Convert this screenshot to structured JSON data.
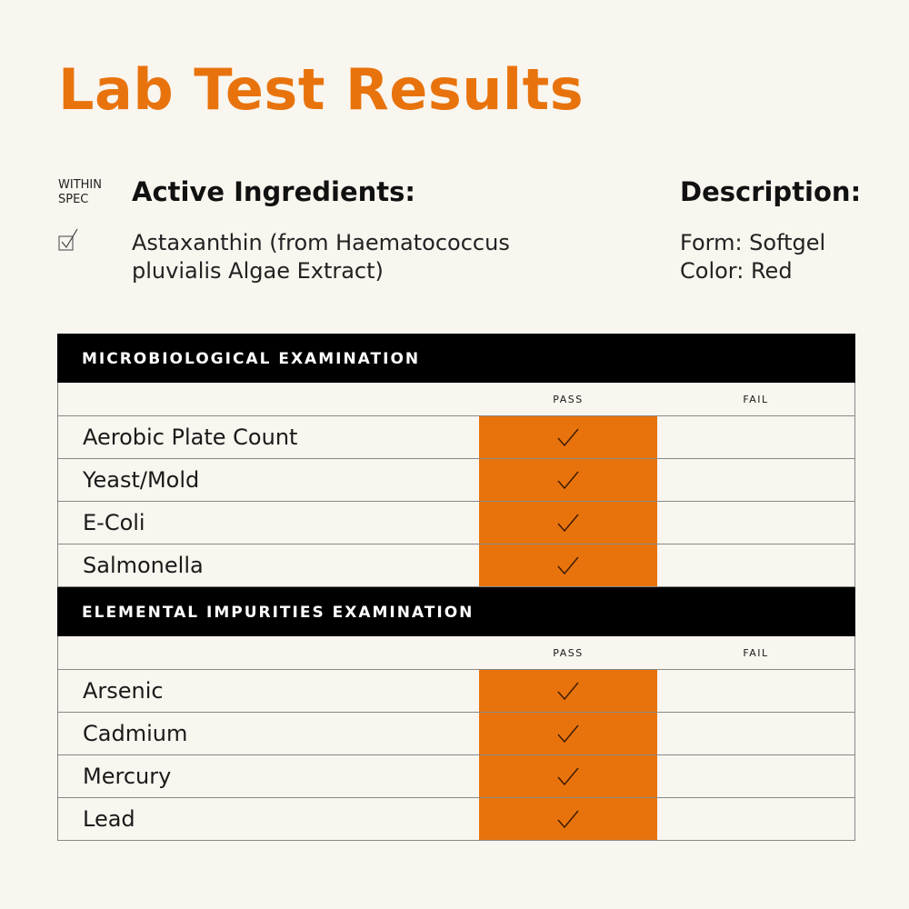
{
  "title": "Lab Test Results",
  "spec": {
    "line1": "WITHIN",
    "line2": "SPEC"
  },
  "active": {
    "heading": "Active Ingredients:",
    "line1": "Astaxanthin (from Haematococcus",
    "line2": "pluvialis Algae Extract)"
  },
  "description": {
    "heading": "Description:",
    "form": "Form: Softgel",
    "color": "Color: Red"
  },
  "colors": {
    "accent": "#e8730c",
    "background": "#f9f5ef"
  },
  "sections": [
    {
      "title": "MICROBIOLOGICAL EXAMINATION",
      "pass_label": "PASS",
      "fail_label": "FAIL",
      "rows": [
        {
          "name": "Aerobic Plate Count",
          "result": "pass"
        },
        {
          "name": "Yeast/Mold",
          "result": "pass"
        },
        {
          "name": "E-Coli",
          "result": "pass"
        },
        {
          "name": "Salmonella",
          "result": "pass"
        }
      ]
    },
    {
      "title": "ELEMENTAL IMPURITIES EXAMINATION",
      "pass_label": "PASS",
      "fail_label": "FAIL",
      "rows": [
        {
          "name": "Arsenic",
          "result": "pass"
        },
        {
          "name": "Cadmium",
          "result": "pass"
        },
        {
          "name": "Mercury",
          "result": "pass"
        },
        {
          "name": "Lead",
          "result": "pass"
        }
      ]
    }
  ]
}
